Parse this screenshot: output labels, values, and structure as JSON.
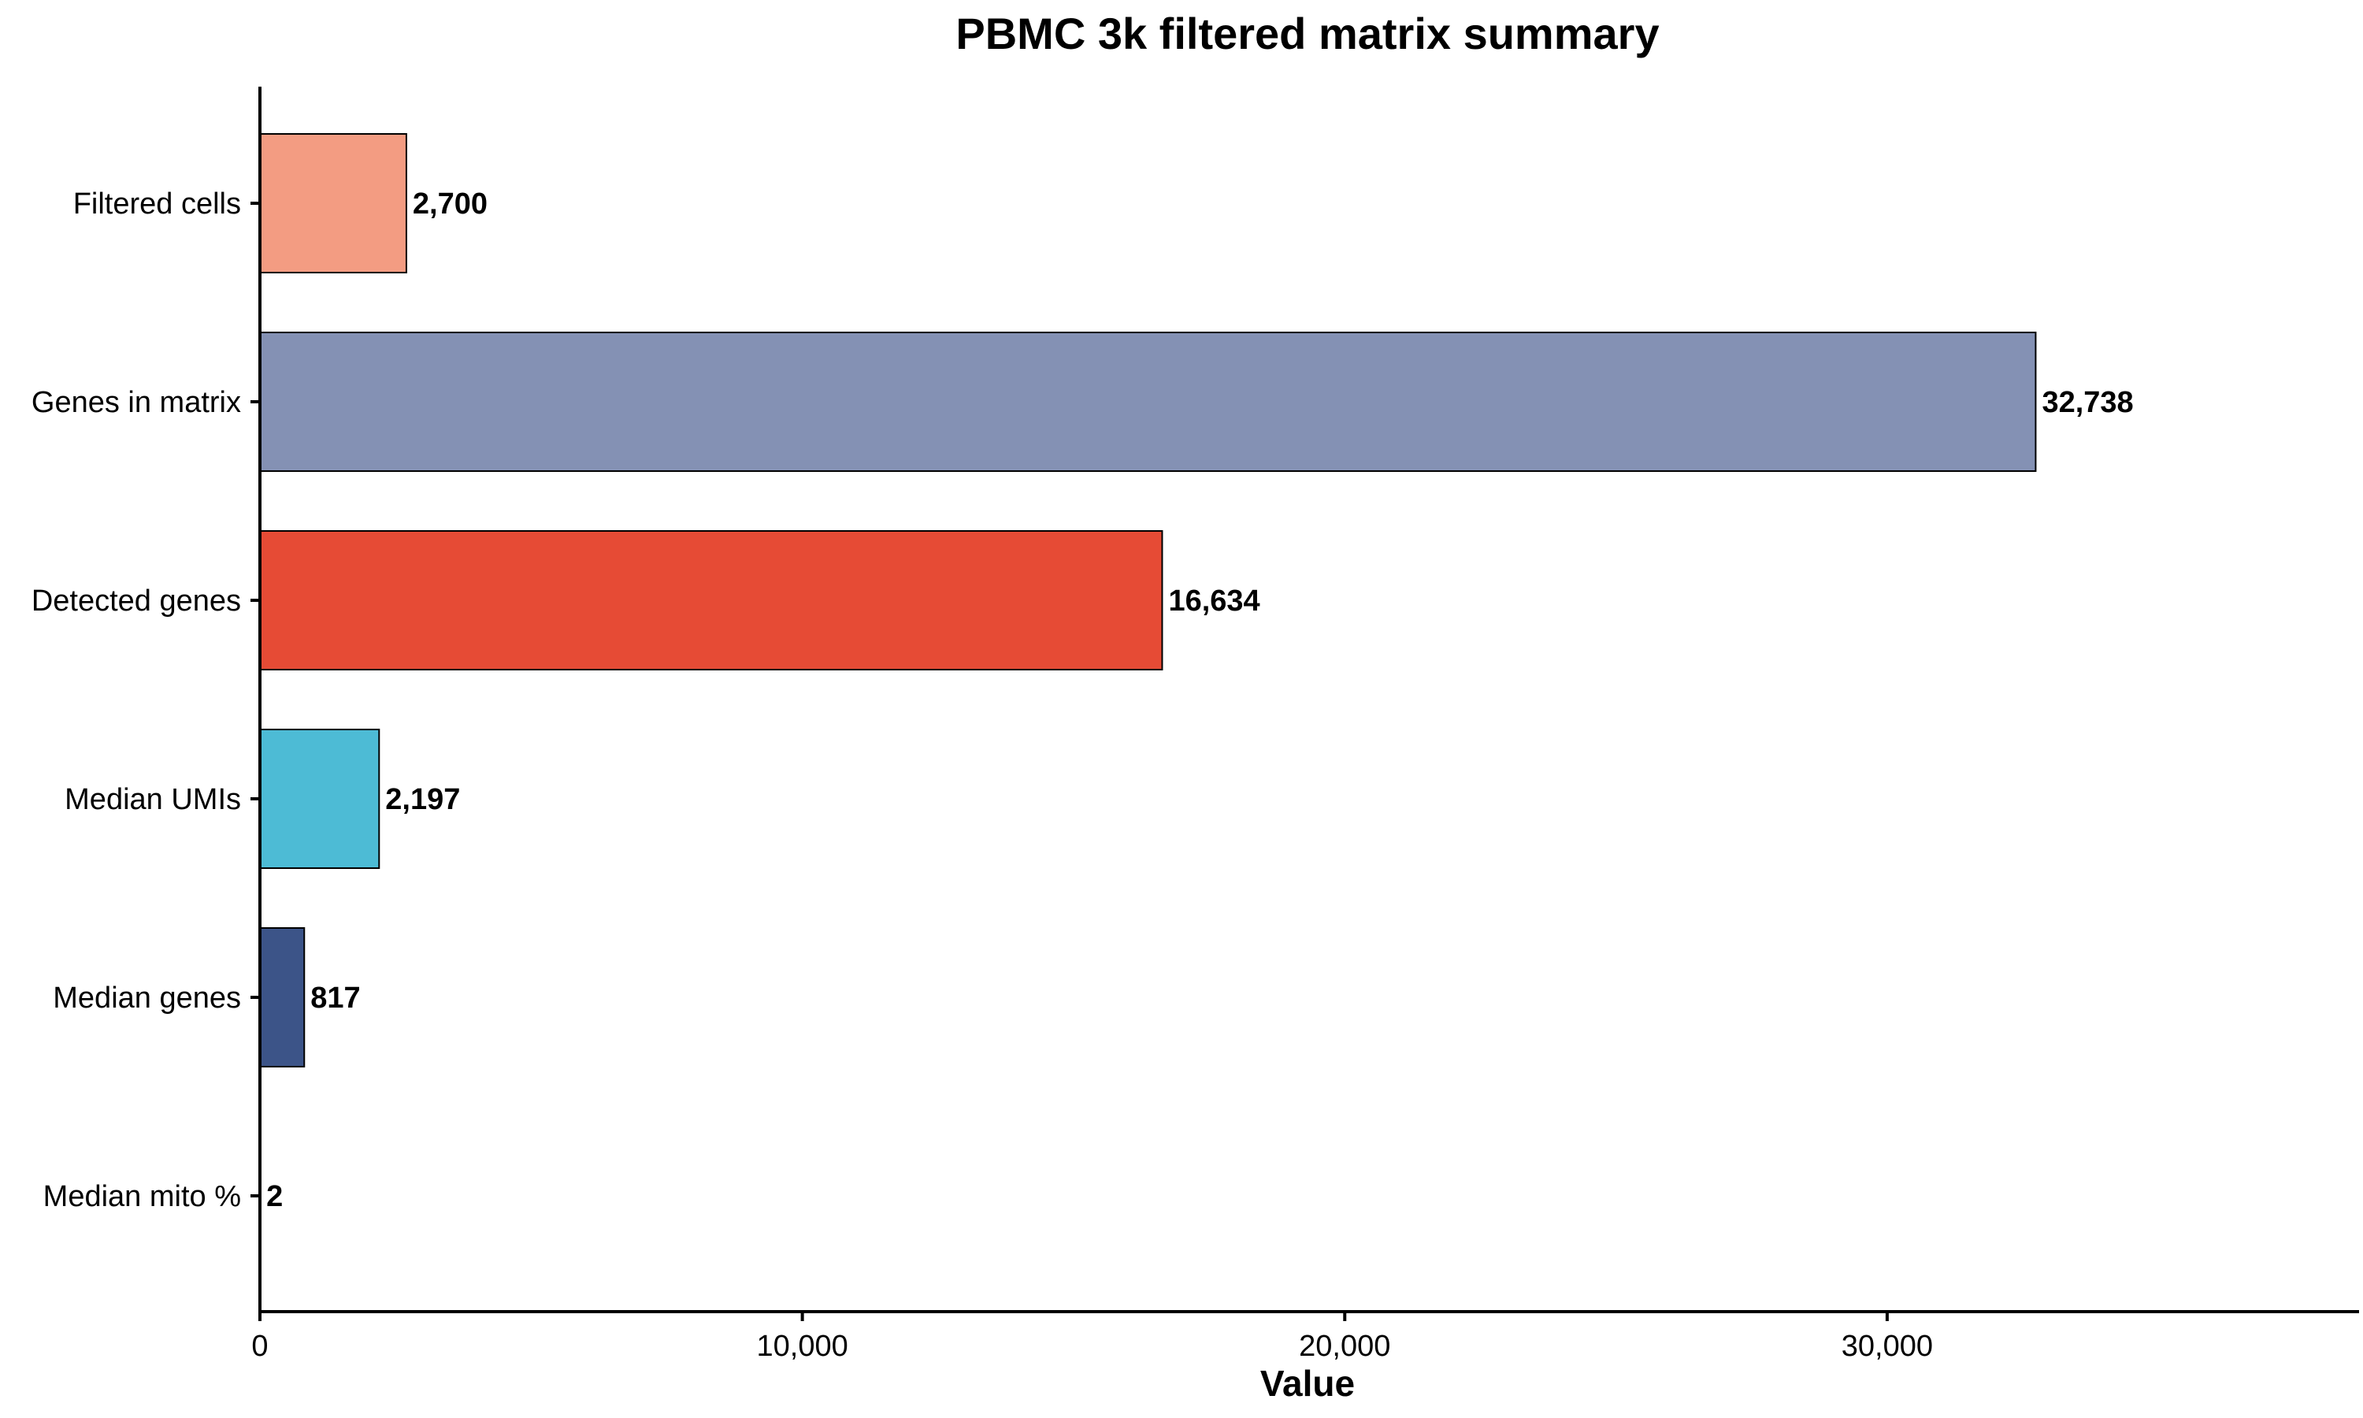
{
  "chart_data": {
    "type": "bar",
    "orientation": "horizontal",
    "title": "PBMC 3k filtered matrix summary",
    "xlabel": "Value",
    "ylabel": "",
    "categories": [
      "Filtered cells",
      "Genes in matrix",
      "Detected genes",
      "Median UMIs",
      "Median genes",
      "Median mito %"
    ],
    "values": [
      2700,
      32738,
      16634,
      2197,
      817,
      2
    ],
    "value_labels": [
      "2,700",
      "32,738",
      "16,634",
      "2,197",
      "817",
      "2"
    ],
    "colors": [
      "#F39C82",
      "#8491B4",
      "#E64B35",
      "#4DBBD5",
      "#3C5488",
      "#00A087"
    ],
    "xlim": [
      0,
      38700
    ],
    "xticks": [
      0,
      10000,
      20000,
      30000
    ],
    "xtick_labels": [
      "0",
      "10,000",
      "20,000",
      "30,000"
    ],
    "grid": false,
    "legend": "none"
  }
}
